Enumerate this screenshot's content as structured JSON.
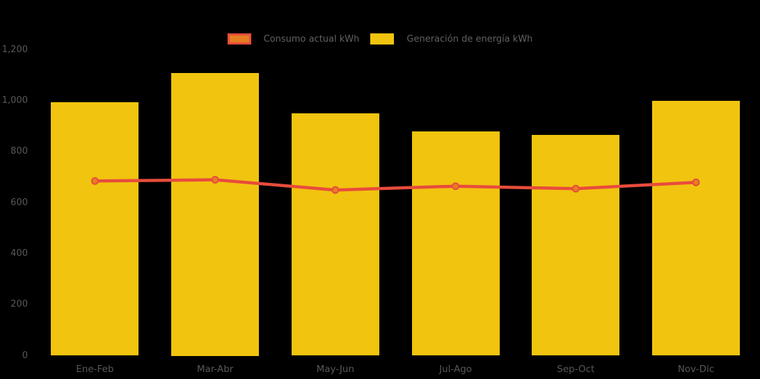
{
  "app": {
    "background_color": "#000000",
    "axis_text_color": "#585858",
    "legend_text_color": "#616161"
  },
  "legend": {
    "items": [
      {
        "label": "Consumo actual kWh",
        "swatch_fill": "#E67E22",
        "swatch_border": "#E74C3C",
        "series_type": "line"
      },
      {
        "label": "Generación de energía kWh",
        "swatch_fill": "#F1C40F",
        "swatch_border": "#F1C40F",
        "series_type": "bar"
      }
    ]
  },
  "chart_data": {
    "type": "bar",
    "subtype": "combination column + line",
    "title": "",
    "xlabel": "",
    "ylabel": "",
    "categories": [
      "Ene-Feb",
      "Mar-Abr",
      "May-Jun",
      "Jul-Ago",
      "Sep-Oct",
      "Nov-Dic"
    ],
    "series": [
      {
        "name": "Consumo actual kWh",
        "type": "line",
        "values": [
          685,
          690,
          650,
          665,
          655,
          680
        ],
        "color": "#E74C3C",
        "marker_color": "#E67E22"
      },
      {
        "name": "Generación de energía kWh",
        "type": "bar",
        "values": [
          995,
          1110,
          950,
          880,
          865,
          1000
        ],
        "color": "#F1C40F"
      }
    ],
    "ylim": [
      0,
      1200
    ],
    "ytick_values": [
      0,
      200,
      400,
      600,
      800,
      1000,
      1200
    ],
    "ytick_labels": [
      "0",
      "200",
      "400",
      "600",
      "800",
      "1,000",
      "1,200"
    ],
    "grid": false,
    "legend_position": "top-center"
  }
}
